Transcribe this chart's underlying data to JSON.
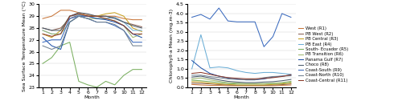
{
  "months": [
    1,
    2,
    3,
    4,
    5,
    6,
    7,
    8,
    9,
    10,
    11,
    12
  ],
  "sst": {
    "West (R1)": [
      28.8,
      29.0,
      29.5,
      29.5,
      29.3,
      29.1,
      29.0,
      29.0,
      29.0,
      28.8,
      28.7,
      28.7
    ],
    "PB West (R2)": [
      28.0,
      27.8,
      28.0,
      28.8,
      29.1,
      29.0,
      29.0,
      29.0,
      28.9,
      28.5,
      28.3,
      28.1
    ],
    "PB Central (R3)": [
      27.5,
      27.2,
      27.8,
      29.0,
      29.2,
      29.0,
      29.0,
      29.2,
      29.3,
      29.0,
      28.0,
      27.7
    ],
    "PB East (R4)": [
      27.8,
      27.5,
      27.5,
      29.0,
      29.1,
      29.0,
      28.8,
      28.8,
      28.9,
      28.5,
      27.8,
      27.8
    ],
    "South- Ecuador (R5)": [
      25.0,
      25.5,
      26.5,
      26.8,
      23.5,
      23.2,
      23.0,
      23.5,
      23.2,
      24.0,
      24.5,
      24.5
    ],
    "PB Transition (R6)": [
      27.8,
      27.5,
      27.5,
      28.5,
      29.0,
      28.8,
      28.8,
      28.8,
      28.6,
      28.2,
      27.2,
      27.5
    ],
    "Panama Gulf (R7)": [
      27.2,
      26.5,
      26.2,
      28.5,
      29.0,
      29.0,
      28.8,
      28.7,
      28.5,
      28.2,
      27.5,
      27.2
    ],
    "Choco (R8)": [
      28.0,
      27.8,
      27.8,
      29.0,
      29.3,
      29.2,
      29.0,
      29.0,
      28.8,
      28.5,
      28.2,
      28.0
    ],
    "Coast-South (R9)": [
      26.8,
      27.0,
      27.0,
      28.8,
      29.0,
      28.8,
      28.5,
      28.5,
      28.2,
      27.8,
      26.8,
      26.8
    ],
    "Coast-North (R10)": [
      26.5,
      26.2,
      26.5,
      28.5,
      29.0,
      28.8,
      28.5,
      28.5,
      28.3,
      27.8,
      26.5,
      26.5
    ],
    "Coast-Central (R11)": [
      27.5,
      27.3,
      27.5,
      29.0,
      29.2,
      29.0,
      29.0,
      28.8,
      28.6,
      28.2,
      27.5,
      27.5
    ]
  },
  "chl": {
    "West (R1)": [
      0.15,
      0.12,
      0.1,
      0.1,
      0.08,
      0.08,
      0.08,
      0.08,
      0.08,
      0.08,
      0.1,
      0.12
    ],
    "PB West (R2)": [
      0.22,
      0.2,
      0.18,
      0.15,
      0.12,
      0.1,
      0.1,
      0.1,
      0.1,
      0.12,
      0.14,
      0.18
    ],
    "PB Central (R3)": [
      0.3,
      0.28,
      0.22,
      0.18,
      0.15,
      0.12,
      0.12,
      0.12,
      0.12,
      0.15,
      0.18,
      0.22
    ],
    "PB East (R4)": [
      1.0,
      2.85,
      1.05,
      1.1,
      1.05,
      0.9,
      0.8,
      0.75,
      0.8,
      0.8,
      0.75,
      0.7
    ],
    "South- Ecuador (R5)": [
      0.38,
      0.35,
      0.3,
      0.25,
      0.2,
      0.18,
      0.18,
      0.18,
      0.18,
      0.2,
      0.22,
      0.28
    ],
    "PB Transition (R6)": [
      0.45,
      0.5,
      0.4,
      0.32,
      0.25,
      0.22,
      0.2,
      0.2,
      0.2,
      0.22,
      0.25,
      0.32
    ],
    "Panama Gulf (R7)": [
      1.45,
      1.05,
      0.75,
      0.6,
      0.5,
      0.45,
      0.4,
      0.4,
      0.45,
      0.55,
      0.6,
      0.65
    ],
    "Choco (R8)": [
      0.55,
      0.6,
      0.5,
      0.4,
      0.32,
      0.28,
      0.25,
      0.25,
      0.28,
      0.3,
      0.35,
      0.42
    ],
    "Coast-South (R9)": [
      3.8,
      3.95,
      3.7,
      4.3,
      3.6,
      3.55,
      3.55,
      3.55,
      2.2,
      2.75,
      4.0,
      3.8
    ],
    "Coast-North (R10)": [
      0.65,
      0.65,
      0.58,
      0.52,
      0.45,
      0.42,
      0.4,
      0.4,
      0.52,
      0.58,
      0.6,
      0.62
    ],
    "Coast-Central (R11)": [
      0.75,
      0.8,
      0.7,
      0.6,
      0.52,
      0.48,
      0.45,
      0.45,
      0.48,
      0.52,
      0.58,
      0.68
    ]
  },
  "colors": {
    "West (R1)": "#C8763A",
    "PB West (R2)": "#8B6355",
    "PB Central (R3)": "#C8A020",
    "PB East (R4)": "#6BAED6",
    "South- Ecuador (R5)": "#7AAF60",
    "PB Transition (R6)": "#A0B870",
    "Panama Gulf (R7)": "#2255AA",
    "Choco (R8)": "#4A5A6A",
    "Coast-South (R9)": "#3A6ABE",
    "Coast-North (R10)": "#708090",
    "Coast-Central (R11)": "#8B3A2A"
  },
  "sst_ylim": [
    23,
    30
  ],
  "chl_ylim": [
    0.0,
    4.5
  ],
  "sst_yticks": [
    23,
    24,
    25,
    26,
    27,
    28,
    29,
    30
  ],
  "chl_yticks": [
    0.0,
    0.5,
    1.0,
    1.5,
    2.0,
    2.5,
    3.0,
    3.5,
    4.0,
    4.5
  ],
  "xlabel": "Month",
  "sst_ylabel": "Sea Surface Temperature Mean (°C)",
  "chl_ylabel": "Chlorophyll-a Mean (mg.m-3)"
}
